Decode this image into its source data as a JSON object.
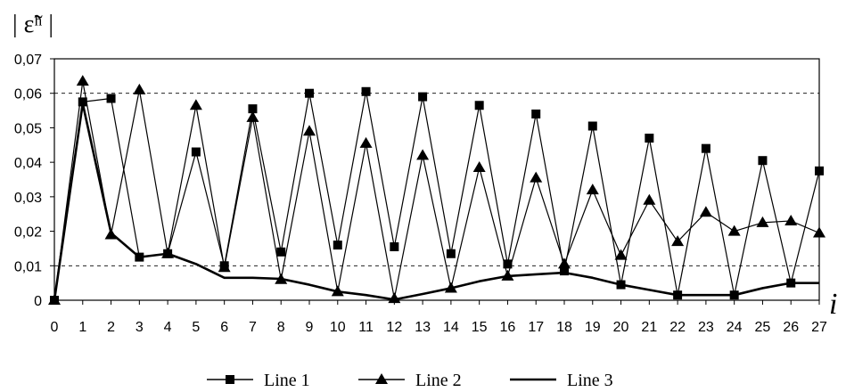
{
  "chart_data": {
    "type": "line",
    "x": [
      0,
      1,
      2,
      3,
      4,
      5,
      6,
      7,
      8,
      9,
      10,
      11,
      12,
      13,
      14,
      15,
      16,
      17,
      18,
      19,
      20,
      21,
      22,
      23,
      24,
      25,
      26,
      27
    ],
    "xticks": [
      "0",
      "1",
      "2",
      "3",
      "4",
      "5",
      "6",
      "7",
      "8",
      "9",
      "10",
      "11",
      "12",
      "13",
      "14",
      "15",
      "16",
      "17",
      "18",
      "19",
      "20",
      "21",
      "22",
      "23",
      "24",
      "25",
      "26",
      "27"
    ],
    "ylim": [
      0,
      0.07
    ],
    "yticks": [
      "0",
      "0,01",
      "0,02",
      "0,03",
      "0,04",
      "0,05",
      "0,06",
      "0,07"
    ],
    "ytick_values": [
      0,
      0.01,
      0.02,
      0.03,
      0.04,
      0.05,
      0.06,
      0.07
    ],
    "reference_lines": [
      0.01,
      0.06
    ],
    "xlabel": "i",
    "ylabel": "| ε̃ʰ |",
    "legend_position": "bottom",
    "series": [
      {
        "name": "Line 1",
        "marker": "square",
        "values": [
          0,
          0.0575,
          0.0585,
          0.0125,
          0.0135,
          0.043,
          0.01,
          0.0555,
          0.014,
          0.06,
          0.016,
          0.0605,
          0.0155,
          0.059,
          0.0135,
          0.0565,
          0.0105,
          0.054,
          0.0085,
          0.0505,
          0.0045,
          0.047,
          0.0015,
          0.044,
          0.0015,
          0.0405,
          0.005,
          0.0375
        ]
      },
      {
        "name": "Line 2",
        "marker": "triangle",
        "values": [
          0,
          0.0635,
          0.019,
          0.061,
          0.0135,
          0.0565,
          0.0095,
          0.053,
          0.006,
          0.049,
          0.0025,
          0.0455,
          0.0005,
          0.042,
          0.0035,
          0.0385,
          0.007,
          0.0355,
          0.0105,
          0.032,
          0.013,
          0.029,
          0.017,
          0.0255,
          0.02,
          0.0225,
          0.023,
          0.0195
        ]
      },
      {
        "name": "Line 3",
        "marker": "none",
        "values": [
          0,
          0.057,
          0.0195,
          0.0125,
          0.0135,
          0.0105,
          0.0065,
          0.0065,
          0.0062,
          0.0045,
          0.0025,
          0.0015,
          0.0002,
          0.0018,
          0.0035,
          0.0055,
          0.007,
          0.0075,
          0.008,
          0.0065,
          0.0045,
          0.003,
          0.0015,
          0.0015,
          0.0015,
          0.0035,
          0.005,
          0.005
        ]
      }
    ]
  }
}
